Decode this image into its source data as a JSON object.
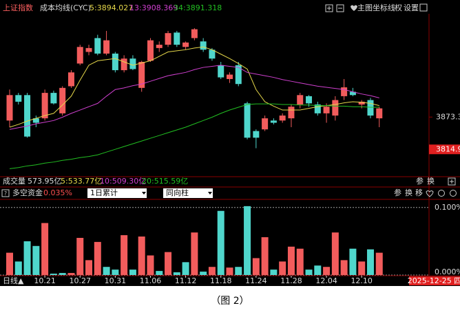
{
  "toolbar": {
    "symbol": "上证指数",
    "indicator": "成本均线(CYC)",
    "buttons": [
      "主图",
      "坐标线",
      "权",
      "设置"
    ]
  },
  "chart_data": [
    {
      "type": "candlestick",
      "open": [
        3867,
        3913,
        3913,
        3871,
        3871,
        3917,
        3880,
        3929,
        3970,
        3991,
        4016,
        3988,
        3988,
        3958,
        3979,
        3926,
        3975,
        3998,
        4004,
        4026,
        4000,
        4016,
        4010,
        3995,
        3967,
        3942,
        3967,
        3898,
        3848,
        3851,
        3867,
        3867,
        3871,
        3896,
        3911,
        3896,
        3880,
        3876,
        3911,
        3919,
        3896,
        3904,
        3871
      ],
      "high": [
        3923,
        3917,
        3917,
        3876,
        3923,
        3921,
        3929,
        3958,
        4004,
        4004,
        4022,
        4029,
        3991,
        3985,
        3985,
        3975,
        4016,
        4010,
        4029,
        4029,
        4010,
        4034,
        4016,
        3998,
        3973,
        3954,
        3973,
        3901,
        3851,
        3876,
        3871,
        3880,
        3896,
        3917,
        3913,
        3901,
        3898,
        3911,
        3942,
        3926,
        3904,
        3908,
        3892
      ],
      "low": [
        3855,
        3896,
        3836,
        3855,
        3867,
        3896,
        3876,
        3926,
        3967,
        3985,
        3985,
        3985,
        3954,
        3954,
        3958,
        3919,
        3973,
        3991,
        4000,
        4000,
        3995,
        4012,
        3991,
        3975,
        3942,
        3935,
        3929,
        3833,
        3817,
        3848,
        3860,
        3863,
        3855,
        3889,
        3892,
        3876,
        3863,
        3867,
        3904,
        3911,
        3889,
        3871,
        3855
      ],
      "close": [
        3913,
        3901,
        3838,
        3863,
        3917,
        3898,
        3926,
        3954,
        4000,
        3998,
        3988,
        4012,
        3958,
        3979,
        3960,
        3973,
        4012,
        4004,
        4025,
        4004,
        4008,
        4032,
        3995,
        3979,
        3945,
        3950,
        3933,
        3836,
        3836,
        3871,
        3863,
        3876,
        3892,
        3913,
        3898,
        3880,
        3892,
        3904,
        3927,
        3913,
        3901,
        3876,
        3889
      ],
      "up_color": "#f25c5c",
      "down_color": "#4fd6cc",
      "series": [
        {
          "name": "5:3894.027",
          "color": "#e6d84a",
          "values": [
            3855,
            3860,
            3866,
            3871,
            3876,
            3880,
            3895,
            3911,
            3940,
            3967,
            3975,
            3977,
            3979,
            3973,
            3967,
            3971,
            3975,
            3983,
            3991,
            3993,
            3995,
            3998,
            4000,
            3995,
            3987,
            3979,
            3970,
            3960,
            3923,
            3901,
            3893,
            3886,
            3886,
            3886,
            3889,
            3892,
            3894,
            3896,
            3899,
            3901,
            3900,
            3898,
            3894
          ]
        },
        {
          "name": "13:3908.369",
          "color": "#d040d0",
          "values": [
            3851,
            3854,
            3857,
            3861,
            3864,
            3867,
            3873,
            3880,
            3886,
            3892,
            3898,
            3911,
            3923,
            3926,
            3930,
            3933,
            3938,
            3943,
            3948,
            3951,
            3954,
            3959,
            3963,
            3965,
            3967,
            3965,
            3963,
            3954,
            3951,
            3948,
            3945,
            3941,
            3938,
            3935,
            3932,
            3929,
            3927,
            3925,
            3923,
            3919,
            3915,
            3912,
            3908
          ]
        },
        {
          "name": "34:3891.318",
          "color": "#22c022",
          "values": [
            3780,
            3782,
            3785,
            3787,
            3790,
            3792,
            3795,
            3797,
            3800,
            3802,
            3805,
            3810,
            3815,
            3820,
            3825,
            3830,
            3835,
            3840,
            3845,
            3850,
            3855,
            3861,
            3867,
            3873,
            3880,
            3886,
            3891,
            3896,
            3897,
            3897,
            3897,
            3896,
            3896,
            3895,
            3895,
            3894,
            3894,
            3893,
            3893,
            3892,
            3892,
            3891,
            3891
          ]
        }
      ],
      "ylim": [
        3768,
        4060
      ],
      "yticks": [
        3873.3
      ],
      "last_price": 3814.9,
      "last_price_color": "#e02020"
    },
    {
      "type": "bar",
      "title": "多空资金",
      "summary": "0.035%",
      "controls": [
        "1日累计",
        "同向柱"
      ],
      "buttons": [
        "参",
        "换",
        "移"
      ],
      "period_label": "日线▲",
      "cursor_date": "2025-12-25 四",
      "categories": [
        null,
        null,
        null,
        null,
        "10.21",
        null,
        null,
        null,
        "10.27",
        null,
        null,
        null,
        "10.31",
        null,
        null,
        null,
        "11.06",
        null,
        null,
        null,
        "11.12",
        null,
        null,
        null,
        "11.18",
        null,
        null,
        null,
        "11.24",
        null,
        null,
        null,
        "11.28",
        null,
        null,
        null,
        "12.04",
        null,
        null,
        null,
        "12.10",
        null,
        null
      ],
      "values": [
        0.033,
        0.02,
        0.05,
        0.043,
        0.077,
        0.002,
        0.003,
        0.003,
        0.055,
        0.022,
        0.049,
        0.012,
        0.008,
        0.059,
        0.008,
        0.057,
        0.029,
        0.006,
        0.034,
        0.004,
        0.019,
        0.063,
        0.005,
        0.012,
        0.095,
        0.011,
        0.012,
        0.102,
        0.025,
        0.056,
        0.008,
        0.02,
        0.042,
        0.039,
        0.008,
        0.014,
        0.012,
        0.063,
        0.022,
        0.039,
        0.02,
        0.038,
        0.033
      ],
      "colors": [
        "#f25c5c",
        "#4fd6cc",
        "#4fd6cc",
        "#4fd6cc",
        "#f25c5c",
        "#4fd6cc",
        "#4fd6cc",
        "#f25c5c",
        "#f25c5c",
        "#f25c5c",
        "#f25c5c",
        "#4fd6cc",
        "#4fd6cc",
        "#f25c5c",
        "#4fd6cc",
        "#f25c5c",
        "#f25c5c",
        "#4fd6cc",
        "#f25c5c",
        "#4fd6cc",
        "#4fd6cc",
        "#f25c5c",
        "#4fd6cc",
        "#f25c5c",
        "#4fd6cc",
        "#f25c5c",
        "#4fd6cc",
        "#4fd6cc",
        "#f25c5c",
        "#f25c5c",
        "#4fd6cc",
        "#f25c5c",
        "#f25c5c",
        "#f25c5c",
        "#4fd6cc",
        "#4fd6cc",
        "#f25c5c",
        "#f25c5c",
        "#f25c5c",
        "#4fd6cc",
        "#f25c5c",
        "#4fd6cc",
        "#f25c5c"
      ],
      "ylim": [
        0,
        0.11
      ],
      "yticks": [
        {
          "value": 0.1,
          "label": "0.100%"
        },
        {
          "value": 0,
          "label": "0.000%"
        }
      ],
      "grid": true
    }
  ],
  "volume_row": {
    "label": "成交量",
    "total": "573.95亿",
    "averages": [
      {
        "text": "5:533.77亿",
        "color": "#e6d84a"
      },
      {
        "text": "10:509.30亿",
        "color": "#d040d0"
      },
      {
        "text": "20:515.59亿",
        "color": "#22c022"
      }
    ],
    "buttons": [
      "参",
      "换"
    ]
  },
  "caption": "（图 2）"
}
